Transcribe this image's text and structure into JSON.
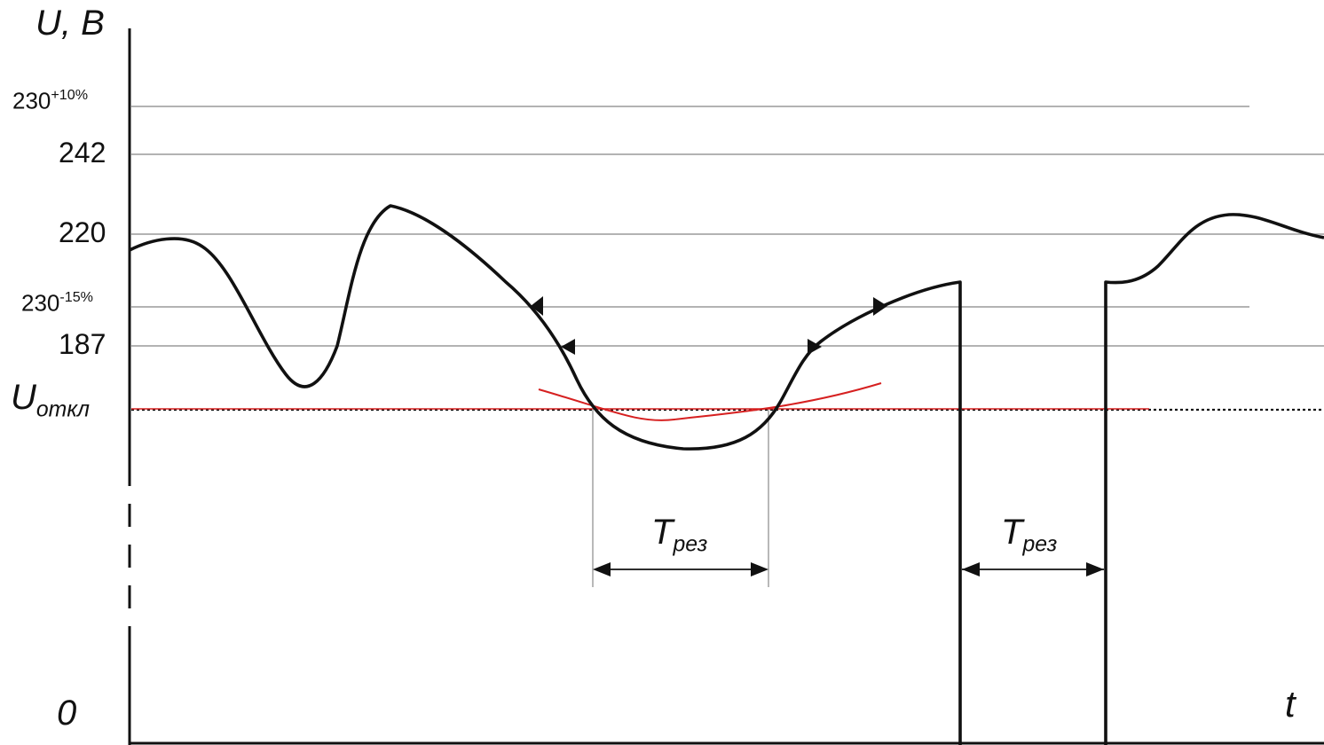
{
  "axes": {
    "y_label": "U, B",
    "x_label": "t",
    "origin_label": "0"
  },
  "levels": [
    {
      "id": "tol-plus",
      "base": "230",
      "sup": "+10%"
    },
    {
      "id": "v242",
      "text": "242"
    },
    {
      "id": "v220",
      "text": "220"
    },
    {
      "id": "tol-minus",
      "base": "230",
      "sup": "-15%"
    },
    {
      "id": "v187",
      "text": "187"
    }
  ],
  "cutoff": {
    "base": "U",
    "sub": "откл"
  },
  "intervals": [
    {
      "base": "T",
      "sub": "рез"
    },
    {
      "base": "T",
      "sub": "рез"
    }
  ],
  "colors": {
    "curve": "#111111",
    "gridline": "#9a9a9a",
    "cutoff_line": "#d62020",
    "approx_curve": "#d62020"
  }
}
